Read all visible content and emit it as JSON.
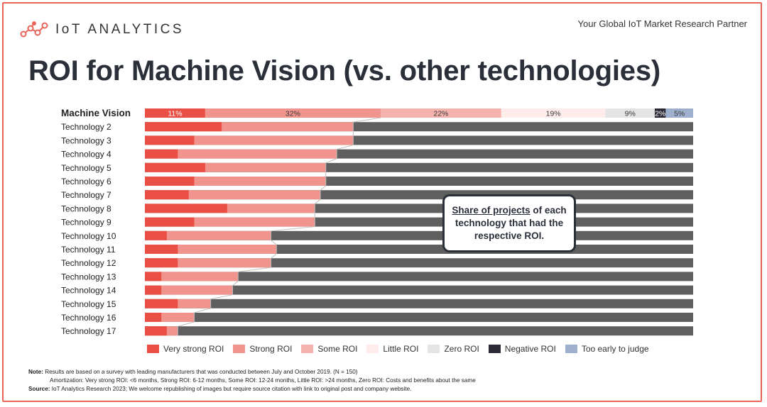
{
  "header": {
    "logo_name": "IoT ANALYTICS",
    "tagline": "Your Global IoT Market Research Partner",
    "title": "ROI for Machine Vision (vs. other technologies)"
  },
  "callout": {
    "underlined": "Share of projects",
    "rest": "of each technology that had the respective ROI."
  },
  "colors": {
    "very_strong": "#e94f45",
    "strong": "#f0948d",
    "some": "#f5b3ad",
    "little": "#fdecea",
    "zero": "#e4e4e4",
    "negative": "#2b2a36",
    "too_early": "#9fb0cf",
    "other_grey": "#5f5f5f",
    "frame": "#e8655a"
  },
  "notes": {
    "note_label": "Note:",
    "note_text": "Results are based on a survey with leading manufacturers that was conducted between July and October 2019. (N = 150)",
    "amortization": "Amortization: Very strong ROI: <6 months, Strong ROI: 6-12 months, Some ROI: 12-24 months, Little ROI: >24 months, Zero ROI: Costs and benefits about the same",
    "source_label": "Source:",
    "source_text": "IoT Analytics Research 2023; We welcome republishing of images but require source citation with link to original post and company website."
  },
  "chart_data": {
    "type": "bar",
    "orientation": "horizontal-stacked-100",
    "categories": [
      "Machine Vision",
      "Technology 2",
      "Technology 3",
      "Technology 4",
      "Technology 5",
      "Technology 6",
      "Technology 7",
      "Technology 8",
      "Technology 9",
      "Technology 10",
      "Technology 11",
      "Technology 12",
      "Technology 13",
      "Technology 14",
      "Technology 15",
      "Technology 16",
      "Technology 17"
    ],
    "legend": [
      "Very strong ROI",
      "Strong ROI",
      "Some ROI",
      "Little ROI",
      "Zero ROI",
      "Negative ROI",
      "Too early to judge"
    ],
    "machine_vision": {
      "values": [
        11,
        32,
        22,
        19,
        9,
        2,
        5
      ],
      "labels": [
        "11%",
        "32%",
        "22%",
        "19%",
        "9%",
        "2%",
        "5%"
      ]
    },
    "others_very_strong": [
      14,
      9,
      6,
      11,
      9,
      8,
      15,
      9,
      4,
      6,
      6,
      3,
      3,
      6,
      3,
      4
    ],
    "others_strong_plus_some": [
      24,
      29,
      29,
      22,
      24,
      24,
      16,
      22,
      19,
      18,
      17,
      14,
      13,
      6,
      6,
      2
    ],
    "xlim": [
      0,
      100
    ]
  }
}
